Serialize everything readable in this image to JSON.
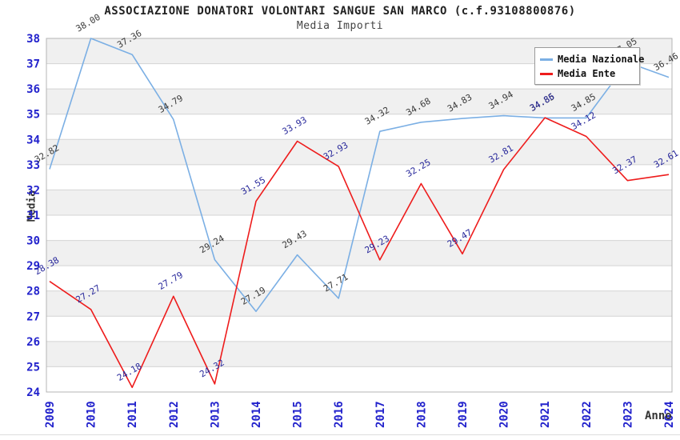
{
  "chart_data": {
    "type": "line",
    "title": "ASSOCIAZIONE DONATORI VOLONTARI SANGUE SAN MARCO (c.f.93108800876)",
    "subtitle": "Media Importi",
    "xlabel": "Anno",
    "ylabel": "Media",
    "ylim": [
      24,
      38
    ],
    "y_ticks": [
      24,
      25,
      26,
      27,
      28,
      29,
      30,
      31,
      32,
      33,
      34,
      35,
      36,
      37,
      38
    ],
    "categories": [
      "2009",
      "2010",
      "2011",
      "2012",
      "2013",
      "2014",
      "2015",
      "2016",
      "2017",
      "2018",
      "2019",
      "2020",
      "2021",
      "2022",
      "2023",
      "2024"
    ],
    "series": [
      {
        "name": "Media Nazionale",
        "color": "#7BAFE4",
        "label_color": "#3a3a3a",
        "values": [
          32.82,
          38.0,
          37.36,
          34.79,
          29.24,
          27.19,
          29.43,
          27.71,
          34.32,
          34.68,
          34.83,
          34.94,
          34.85,
          34.85,
          37.05,
          36.46
        ]
      },
      {
        "name": "Media Ente",
        "color": "#EE1C1C",
        "label_color": "#28289B",
        "values": [
          28.38,
          27.27,
          24.18,
          27.79,
          24.32,
          31.55,
          33.93,
          32.93,
          29.23,
          32.25,
          29.47,
          32.81,
          34.86,
          34.12,
          32.37,
          32.61
        ]
      }
    ],
    "grid": "horizontal",
    "legend_position": "top-right",
    "colors": {
      "tick_label": "#2222CC",
      "grid_line": "#d4d4d4",
      "band_fill": "#f0f0f0",
      "plot_border": "#b4b4b4",
      "title": "#222222",
      "subtitle": "#444444",
      "axis_title": "#333333"
    }
  }
}
